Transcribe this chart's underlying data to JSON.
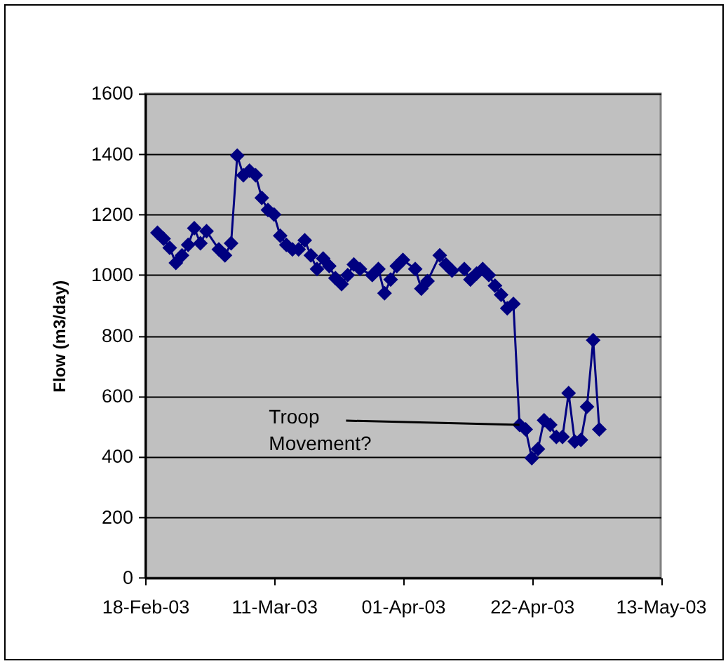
{
  "chart_data": {
    "type": "line",
    "ylabel": "Flow (m3/day)",
    "x": [
      "2003-02-20",
      "2003-02-21",
      "2003-02-22",
      "2003-02-23",
      "2003-02-24",
      "2003-02-25",
      "2003-02-26",
      "2003-02-27",
      "2003-02-28",
      "2003-03-02",
      "2003-03-03",
      "2003-03-04",
      "2003-03-05",
      "2003-03-06",
      "2003-03-07",
      "2003-03-08",
      "2003-03-09",
      "2003-03-10",
      "2003-03-11",
      "2003-03-12",
      "2003-03-13",
      "2003-03-14",
      "2003-03-15",
      "2003-03-16",
      "2003-03-17",
      "2003-03-18",
      "2003-03-19",
      "2003-03-20",
      "2003-03-21",
      "2003-03-22",
      "2003-03-23",
      "2003-03-24",
      "2003-03-25",
      "2003-03-27",
      "2003-03-28",
      "2003-03-29",
      "2003-03-30",
      "2003-03-31",
      "2003-04-01",
      "2003-04-03",
      "2003-04-04",
      "2003-04-05",
      "2003-04-07",
      "2003-04-08",
      "2003-04-09",
      "2003-04-11",
      "2003-04-12",
      "2003-04-13",
      "2003-04-14",
      "2003-04-15",
      "2003-04-16",
      "2003-04-17",
      "2003-04-18",
      "2003-04-19",
      "2003-04-20",
      "2003-04-21",
      "2003-04-22",
      "2003-04-23",
      "2003-04-24",
      "2003-04-25",
      "2003-04-26",
      "2003-04-27",
      "2003-04-28",
      "2003-04-29",
      "2003-04-30",
      "2003-05-01",
      "2003-05-02",
      "2003-05-03"
    ],
    "series": [
      {
        "color": "#000080",
        "values": [
          1140,
          1120,
          1090,
          1040,
          1065,
          1100,
          1155,
          1105,
          1145,
          1085,
          1065,
          1105,
          1395,
          1330,
          1345,
          1330,
          1255,
          1215,
          1200,
          1130,
          1100,
          1085,
          1085,
          1115,
          1065,
          1020,
          1055,
          1030,
          990,
          970,
          1000,
          1035,
          1020,
          1000,
          1020,
          940,
          985,
          1030,
          1050,
          1020,
          955,
          980,
          1065,
          1035,
          1015,
          1020,
          985,
          1005,
          1020,
          1000,
          965,
          935,
          890,
          905,
          505,
          490,
          395,
          425,
          520,
          505,
          465,
          465,
          610,
          450,
          455,
          565,
          785,
          490
        ]
      }
    ],
    "xlim": [
      "2003-02-18",
      "2003-05-13"
    ],
    "xticks": [
      {
        "value": "2003-02-18",
        "label": "18-Feb-03"
      },
      {
        "value": "2003-03-11",
        "label": "11-Mar-03"
      },
      {
        "value": "2003-04-01",
        "label": "01-Apr-03"
      },
      {
        "value": "2003-04-22",
        "label": "22-Apr-03"
      },
      {
        "value": "2003-05-13",
        "label": "13-May-03"
      }
    ],
    "ylim": [
      0,
      1600
    ],
    "yticks": [
      0,
      200,
      400,
      600,
      800,
      1000,
      1200,
      1400,
      1600
    ],
    "grid": "y",
    "marker": "diamond",
    "line_style": "solid",
    "annotations": [
      {
        "text": "Troop Movement?",
        "x": "2003-04-20",
        "y": 505
      }
    ]
  }
}
